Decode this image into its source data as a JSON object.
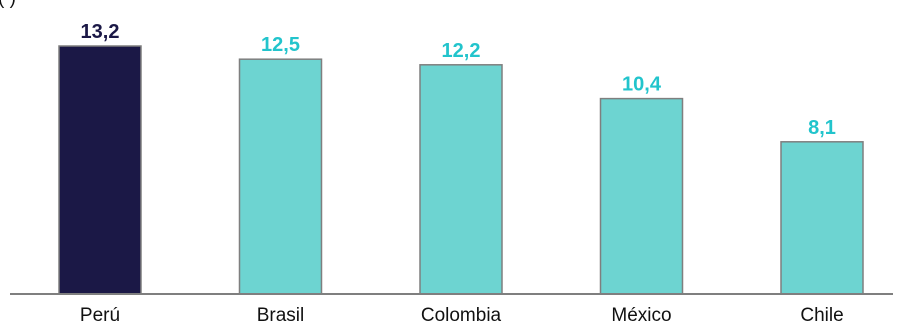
{
  "subtitle_fragment": "(                    )",
  "chart_data": {
    "type": "bar",
    "categories": [
      "Perú",
      "Brasil",
      "Colombia",
      "México",
      "Chile"
    ],
    "values": [
      13.2,
      12.5,
      12.2,
      10.4,
      8.1
    ],
    "value_labels": [
      "13,2",
      "12,5",
      "12,2",
      "10,4",
      "8,1"
    ],
    "highlight_index": 0,
    "colors": {
      "highlight_bar": "#1b1846",
      "highlight_label": "#1b1846",
      "bar": "#6dd4d1",
      "label": "#22c4cc",
      "bar_edge": "#7f7f7f",
      "axis": "#7f7f7f"
    },
    "ylim": [
      0,
      13.2
    ],
    "grid": false,
    "legend": "none"
  }
}
